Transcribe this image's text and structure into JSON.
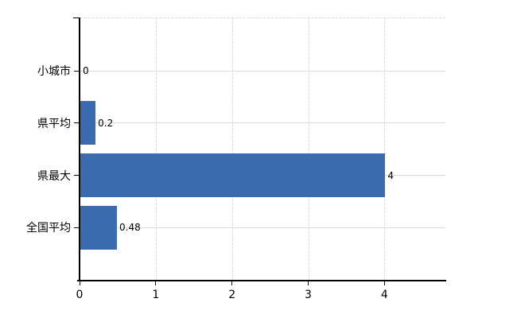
{
  "chart_data": {
    "type": "bar",
    "orientation": "horizontal",
    "title": "",
    "xlabel": "",
    "ylabel": "",
    "categories": [
      "小城市",
      "県平均",
      "県最大",
      "全国平均"
    ],
    "values": [
      0,
      0.2,
      4,
      0.48
    ],
    "value_labels": [
      "0",
      "0.2",
      "4",
      "0.48"
    ],
    "x_ticks": [
      0,
      1,
      2,
      3,
      4
    ],
    "x_tick_labels": [
      "0",
      "1",
      "2",
      "3",
      "4"
    ],
    "xlim": [
      0,
      4.8
    ],
    "grid": true,
    "legend": false,
    "bar_color": "#3b6cb0",
    "row_gridline_color": "#d9ddd9",
    "vertical_gridline_color": "#d8d8de",
    "axis_color": "#000000",
    "text_color": "#000000",
    "background_color": "#ffffff"
  }
}
